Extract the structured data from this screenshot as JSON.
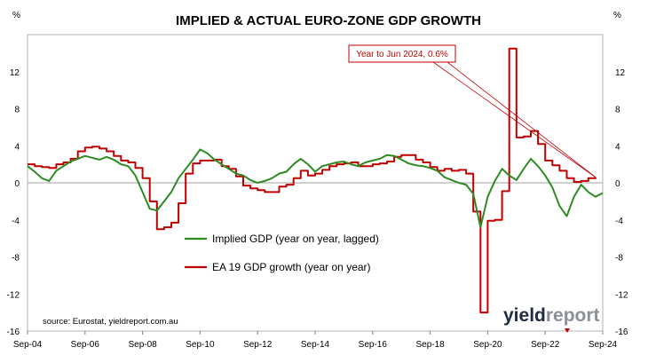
{
  "chart_data": {
    "type": "line",
    "title": "IMPLIED & ACTUAL EURO-ZONE GDP GROWTH",
    "y_unit_left": "%",
    "y_unit_right": "%",
    "ylim": [
      -16,
      16
    ],
    "yticks": [
      -16,
      -12,
      -8,
      -4,
      0,
      4,
      8,
      12
    ],
    "xlim": [
      "2004-09",
      "2024-09"
    ],
    "xticks": [
      "Sep-04",
      "Sep-06",
      "Sep-08",
      "Sep-10",
      "Sep-12",
      "Sep-14",
      "Sep-16",
      "Sep-18",
      "Sep-20",
      "Sep-22",
      "Sep-24"
    ],
    "legend_position": "center-left",
    "source": "source: Eurostat, yieldreport.com.au",
    "logo": {
      "part1": "yield",
      "part2": "report"
    },
    "annotation": {
      "text": "Year to Jun 2024, 0.6%",
      "target_x": "2024-06",
      "target_y": 0.6
    },
    "series": [
      {
        "name": "Implied GDP (year on year, lagged)",
        "color": "#2e8b22",
        "points": [
          [
            "2004-09",
            1.8
          ],
          [
            "2004-12",
            1.2
          ],
          [
            "2005-03",
            0.5
          ],
          [
            "2005-06",
            0.2
          ],
          [
            "2005-09",
            1.3
          ],
          [
            "2005-12",
            1.8
          ],
          [
            "2006-03",
            2.3
          ],
          [
            "2006-06",
            2.6
          ],
          [
            "2006-09",
            2.9
          ],
          [
            "2006-12",
            2.7
          ],
          [
            "2007-03",
            2.5
          ],
          [
            "2007-06",
            2.8
          ],
          [
            "2007-09",
            2.5
          ],
          [
            "2007-12",
            2.0
          ],
          [
            "2008-03",
            1.8
          ],
          [
            "2008-06",
            0.8
          ],
          [
            "2008-09",
            -1.0
          ],
          [
            "2008-12",
            -2.8
          ],
          [
            "2009-03",
            -3.0
          ],
          [
            "2009-06",
            -2.0
          ],
          [
            "2009-09",
            -1.0
          ],
          [
            "2009-12",
            0.5
          ],
          [
            "2010-03",
            1.5
          ],
          [
            "2010-06",
            2.5
          ],
          [
            "2010-09",
            3.6
          ],
          [
            "2010-12",
            3.2
          ],
          [
            "2011-03",
            2.5
          ],
          [
            "2011-06",
            2.0
          ],
          [
            "2011-09",
            1.5
          ],
          [
            "2011-12",
            1.0
          ],
          [
            "2012-03",
            0.8
          ],
          [
            "2012-06",
            0.3
          ],
          [
            "2012-09",
            0.0
          ],
          [
            "2012-12",
            0.2
          ],
          [
            "2013-03",
            0.5
          ],
          [
            "2013-06",
            1.0
          ],
          [
            "2013-09",
            1.2
          ],
          [
            "2013-12",
            2.0
          ],
          [
            "2014-03",
            2.6
          ],
          [
            "2014-06",
            2.0
          ],
          [
            "2014-09",
            1.2
          ],
          [
            "2014-12",
            1.8
          ],
          [
            "2015-03",
            2.0
          ],
          [
            "2015-06",
            2.2
          ],
          [
            "2015-09",
            2.3
          ],
          [
            "2015-12",
            2.0
          ],
          [
            "2016-03",
            1.8
          ],
          [
            "2016-06",
            2.2
          ],
          [
            "2016-09",
            2.4
          ],
          [
            "2016-12",
            2.6
          ],
          [
            "2017-03",
            3.0
          ],
          [
            "2017-06",
            2.9
          ],
          [
            "2017-09",
            2.5
          ],
          [
            "2017-12",
            2.1
          ],
          [
            "2018-03",
            1.9
          ],
          [
            "2018-06",
            1.8
          ],
          [
            "2018-09",
            1.6
          ],
          [
            "2018-12",
            1.3
          ],
          [
            "2019-03",
            0.6
          ],
          [
            "2019-06",
            0.3
          ],
          [
            "2019-09",
            0.0
          ],
          [
            "2019-12",
            -0.2
          ],
          [
            "2020-03",
            -1.2
          ],
          [
            "2020-06",
            -4.8
          ],
          [
            "2020-09",
            -1.5
          ],
          [
            "2020-12",
            0.2
          ],
          [
            "2021-03",
            1.5
          ],
          [
            "2021-06",
            0.8
          ],
          [
            "2021-09",
            0.3
          ],
          [
            "2021-12",
            1.5
          ],
          [
            "2022-03",
            2.6
          ],
          [
            "2022-06",
            1.8
          ],
          [
            "2022-09",
            0.8
          ],
          [
            "2022-12",
            -0.5
          ],
          [
            "2023-03",
            -2.5
          ],
          [
            "2023-06",
            -3.6
          ],
          [
            "2023-09",
            -1.5
          ],
          [
            "2023-12",
            -0.2
          ],
          [
            "2024-03",
            -1.0
          ],
          [
            "2024-06",
            -1.5
          ],
          [
            "2024-09",
            -1.1
          ]
        ]
      },
      {
        "name": "EA 19 GDP growth (year on year)",
        "color": "#c00000",
        "points": [
          [
            "2004-09",
            2.0
          ],
          [
            "2004-12",
            1.8
          ],
          [
            "2005-03",
            1.7
          ],
          [
            "2005-06",
            1.6
          ],
          [
            "2005-09",
            2.0
          ],
          [
            "2005-12",
            2.2
          ],
          [
            "2006-03",
            2.6
          ],
          [
            "2006-06",
            3.4
          ],
          [
            "2006-09",
            3.8
          ],
          [
            "2006-12",
            3.9
          ],
          [
            "2007-03",
            3.7
          ],
          [
            "2007-06",
            3.4
          ],
          [
            "2007-09",
            2.9
          ],
          [
            "2007-12",
            2.4
          ],
          [
            "2008-03",
            2.2
          ],
          [
            "2008-06",
            1.6
          ],
          [
            "2008-09",
            0.5
          ],
          [
            "2008-12",
            -2.0
          ],
          [
            "2009-03",
            -5.0
          ],
          [
            "2009-06",
            -4.8
          ],
          [
            "2009-09",
            -4.3
          ],
          [
            "2009-12",
            -2.2
          ],
          [
            "2010-03",
            1.0
          ],
          [
            "2010-06",
            2.1
          ],
          [
            "2010-09",
            2.4
          ],
          [
            "2010-12",
            2.4
          ],
          [
            "2011-03",
            2.5
          ],
          [
            "2011-06",
            1.8
          ],
          [
            "2011-09",
            1.5
          ],
          [
            "2011-12",
            0.7
          ],
          [
            "2012-03",
            -0.3
          ],
          [
            "2012-06",
            -0.6
          ],
          [
            "2012-09",
            -0.8
          ],
          [
            "2012-12",
            -1.0
          ],
          [
            "2013-03",
            -1.0
          ],
          [
            "2013-06",
            -0.4
          ],
          [
            "2013-09",
            -0.2
          ],
          [
            "2013-12",
            0.5
          ],
          [
            "2014-03",
            1.3
          ],
          [
            "2014-06",
            0.8
          ],
          [
            "2014-09",
            1.0
          ],
          [
            "2014-12",
            1.4
          ],
          [
            "2015-03",
            1.8
          ],
          [
            "2015-06",
            2.0
          ],
          [
            "2015-09",
            2.1
          ],
          [
            "2015-12",
            2.2
          ],
          [
            "2016-03",
            1.8
          ],
          [
            "2016-06",
            1.8
          ],
          [
            "2016-09",
            2.0
          ],
          [
            "2016-12",
            2.1
          ],
          [
            "2017-03",
            2.3
          ],
          [
            "2017-06",
            2.8
          ],
          [
            "2017-09",
            3.0
          ],
          [
            "2017-12",
            3.0
          ],
          [
            "2018-03",
            2.5
          ],
          [
            "2018-06",
            2.2
          ],
          [
            "2018-09",
            1.7
          ],
          [
            "2018-12",
            1.3
          ],
          [
            "2019-03",
            1.5
          ],
          [
            "2019-06",
            1.3
          ],
          [
            "2019-09",
            1.4
          ],
          [
            "2019-12",
            1.0
          ],
          [
            "2020-03",
            -3.1
          ],
          [
            "2020-06",
            -14.0
          ],
          [
            "2020-09",
            -4.1
          ],
          [
            "2020-12",
            -4.0
          ],
          [
            "2021-03",
            -0.9
          ],
          [
            "2021-06",
            14.5
          ],
          [
            "2021-09",
            4.9
          ],
          [
            "2021-12",
            5.0
          ],
          [
            "2022-03",
            5.6
          ],
          [
            "2022-06",
            4.2
          ],
          [
            "2022-09",
            2.4
          ],
          [
            "2022-12",
            1.9
          ],
          [
            "2023-03",
            1.3
          ],
          [
            "2023-06",
            0.5
          ],
          [
            "2023-09",
            0.1
          ],
          [
            "2023-12",
            0.2
          ],
          [
            "2024-03",
            0.5
          ],
          [
            "2024-06",
            0.6
          ]
        ]
      }
    ]
  }
}
